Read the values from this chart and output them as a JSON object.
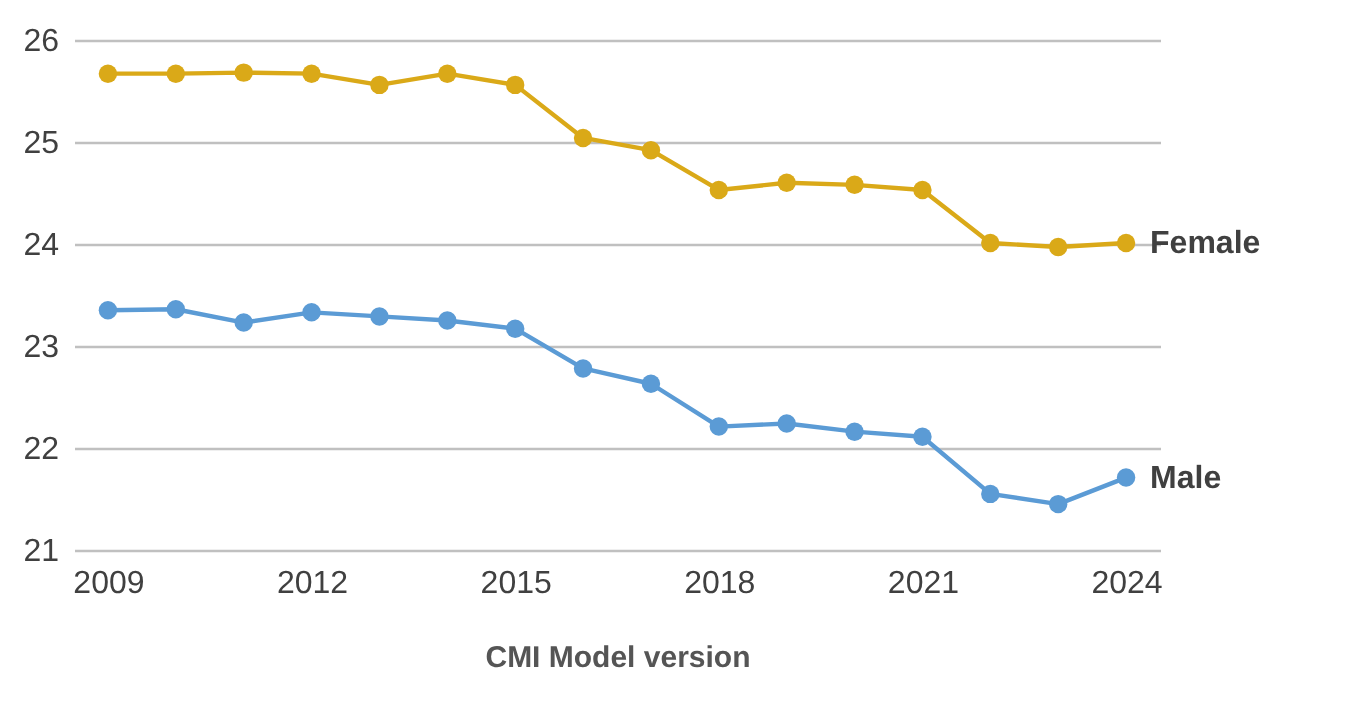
{
  "chart_data": {
    "type": "line",
    "xlabel": "CMI Model version",
    "x": [
      2009,
      2010,
      2011,
      2012,
      2013,
      2014,
      2015,
      2016,
      2017,
      2018,
      2019,
      2020,
      2021,
      2022,
      2023,
      2024
    ],
    "series": [
      {
        "name": "Female",
        "color": "#daa918",
        "values": [
          25.67,
          25.67,
          25.68,
          25.67,
          25.56,
          25.67,
          25.56,
          25.04,
          24.92,
          24.53,
          24.6,
          24.58,
          24.53,
          24.01,
          23.97,
          24.01
        ]
      },
      {
        "name": "Male",
        "color": "#5b9bd5",
        "values": [
          23.35,
          23.36,
          23.23,
          23.33,
          23.29,
          23.25,
          23.17,
          22.78,
          22.63,
          22.21,
          22.24,
          22.16,
          22.11,
          21.55,
          21.45,
          21.71
        ]
      }
    ],
    "xlim": [
      2008.5,
      2024.5
    ],
    "xticks": [
      2009,
      2012,
      2015,
      2018,
      2021,
      2024
    ],
    "ylim": [
      21,
      26
    ],
    "yticks": [
      21,
      22,
      23,
      24,
      25,
      26
    ],
    "grid": "y",
    "marker": "circle",
    "line_style": "solid"
  }
}
